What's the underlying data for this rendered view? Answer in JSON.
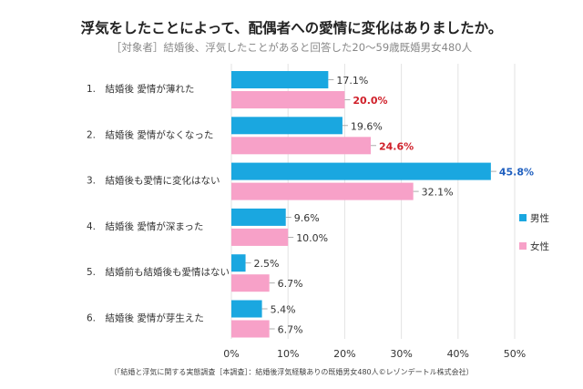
{
  "title": "浮気をしたことによって、配偶者への愛情に変化はありましたか。",
  "subtitle": "［対象者］結婚後、浮気したことがあると回答した20～59歳既婚男女480人",
  "source": "（「結婚と浮気に関する実態調査［本調査］：結婚後浮気経験ありの既婚男女480人©レゾンデートル株式会社）",
  "chart_data": {
    "type": "bar",
    "orientation": "horizontal",
    "categories": [
      "1.　結婚後 愛情が薄れた",
      "2.　結婚後 愛情がなくなった",
      "3.　結婚後も愛情に変化はない",
      "4.　結婚後 愛情が深まった",
      "5.　結婚前も結婚後も愛情はない",
      "6.　結婚後 愛情が芽生えた"
    ],
    "series": [
      {
        "name": "男性",
        "color": "#1aa7e0",
        "values": [
          17.1,
          19.6,
          45.8,
          9.6,
          2.5,
          5.4
        ],
        "labels": [
          "17.1%",
          "19.6%",
          "45.8%",
          "9.6%",
          "2.5%",
          "5.4%"
        ]
      },
      {
        "name": "女性",
        "color": "#f7a1c8",
        "values": [
          20.0,
          24.6,
          32.1,
          10.0,
          6.7,
          6.7
        ],
        "labels": [
          "20.0%",
          "24.6%",
          "32.1%",
          "10.0%",
          "6.7%",
          "6.7%"
        ]
      }
    ],
    "highlight": {
      "男性": [
        2
      ],
      "女性": [
        0,
        1
      ]
    },
    "highlight_colors": {
      "男性": "#1f5fbf",
      "女性": "#d0202a"
    },
    "xlim": [
      0,
      50
    ],
    "ticks": [
      "0%",
      "10%",
      "20%",
      "30%",
      "40%",
      "50%"
    ],
    "grid": true,
    "legend": "right"
  }
}
